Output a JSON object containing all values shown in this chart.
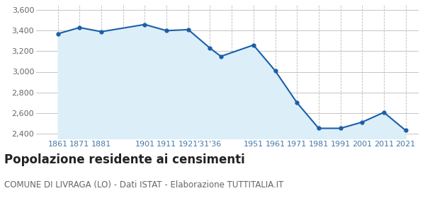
{
  "years": [
    1861,
    1871,
    1881,
    1901,
    1911,
    1921,
    1931,
    1936,
    1951,
    1961,
    1971,
    1981,
    1991,
    2001,
    2011,
    2021
  ],
  "population": [
    3370,
    3430,
    3390,
    3460,
    3400,
    3410,
    3230,
    3150,
    3260,
    3010,
    2700,
    2450,
    2450,
    2510,
    2605,
    2430
  ],
  "line_color": "#1a5fa8",
  "fill_color": "#dceef8",
  "marker_color": "#1a5fa8",
  "background_color": "#ffffff",
  "grid_color": "#bbbbbb",
  "title": "Popolazione residente ai censimenti",
  "subtitle": "COMUNE DI LIVRAGA (LO) - Dati ISTAT - Elaborazione TUTTITALIA.IT",
  "ylim": [
    2350,
    3650
  ],
  "yticks": [
    2400,
    2600,
    2800,
    3000,
    3200,
    3400,
    3600
  ],
  "title_fontsize": 12,
  "subtitle_fontsize": 8.5,
  "tick_fontsize": 8,
  "axis_label_color": "#4477aa",
  "xlim_left": 1851,
  "xlim_right": 2027
}
